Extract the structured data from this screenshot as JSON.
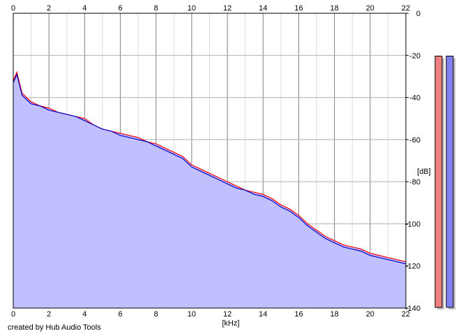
{
  "footer": "created by Hub Audio Tools",
  "chart_data": {
    "type": "line",
    "xlabel": "[kHz]",
    "ylabel": "[dB]",
    "xlim": [
      0,
      22
    ],
    "ylim": [
      -140,
      0
    ],
    "x_ticks": [
      0,
      2,
      4,
      6,
      8,
      10,
      12,
      14,
      16,
      18,
      20,
      22
    ],
    "y_ticks": [
      0,
      -20,
      -40,
      -60,
      -80,
      -100,
      -120,
      -140
    ],
    "grid": true,
    "fill_color": "#c0c0ff",
    "series": [
      {
        "color": "#ff0000",
        "x": [
          0,
          0.2,
          0.5,
          1,
          1.5,
          2,
          2.5,
          3,
          3.5,
          4,
          4.5,
          5,
          5.5,
          6,
          6.5,
          7,
          7.5,
          8,
          8.5,
          9,
          9.5,
          10,
          10.5,
          11,
          11.5,
          12,
          12.5,
          13,
          13.5,
          14,
          14.5,
          15,
          15.5,
          16,
          16.5,
          17,
          17.5,
          18,
          18.5,
          19,
          19.5,
          20,
          20.5,
          21,
          21.5,
          22
        ],
        "y": [
          -32,
          -28,
          -38,
          -42,
          -44,
          -45,
          -47,
          -48,
          -49,
          -50,
          -53,
          -55,
          -56,
          -57,
          -58,
          -59,
          -61,
          -62,
          -64,
          -66,
          -68,
          -72,
          -74,
          -76,
          -78,
          -80,
          -82,
          -84,
          -85,
          -86,
          -88,
          -91,
          -93,
          -96,
          -100,
          -103,
          -106,
          -108,
          -110,
          -111,
          -112,
          -114,
          -115,
          -116,
          -117,
          -118
        ]
      },
      {
        "color": "#0000cc",
        "x": [
          0,
          0.2,
          0.5,
          1,
          1.5,
          2,
          2.5,
          3,
          3.5,
          4,
          4.5,
          5,
          5.5,
          6,
          6.5,
          7,
          7.5,
          8,
          8.5,
          9,
          9.5,
          10,
          10.5,
          11,
          11.5,
          12,
          12.5,
          13,
          13.5,
          14,
          14.5,
          15,
          15.5,
          16,
          16.5,
          17,
          17.5,
          18,
          18.5,
          19,
          19.5,
          20,
          20.5,
          21,
          21.5,
          22
        ],
        "y": [
          -33,
          -29,
          -39,
          -43,
          -44,
          -46,
          -47,
          -48,
          -49,
          -51,
          -53,
          -55,
          -56,
          -58,
          -59,
          -60,
          -61,
          -63,
          -65,
          -67,
          -69,
          -73,
          -75,
          -77,
          -79,
          -81,
          -83,
          -84,
          -86,
          -87,
          -89,
          -92,
          -94,
          -97,
          -101,
          -104,
          -107,
          -109,
          -111,
          -112,
          -113,
          -115,
          -116,
          -117,
          -118,
          -119
        ]
      }
    ],
    "meters": [
      {
        "color": "#f08080",
        "level": 0.92
      },
      {
        "color": "#8080f0",
        "level": 0.92
      }
    ]
  }
}
